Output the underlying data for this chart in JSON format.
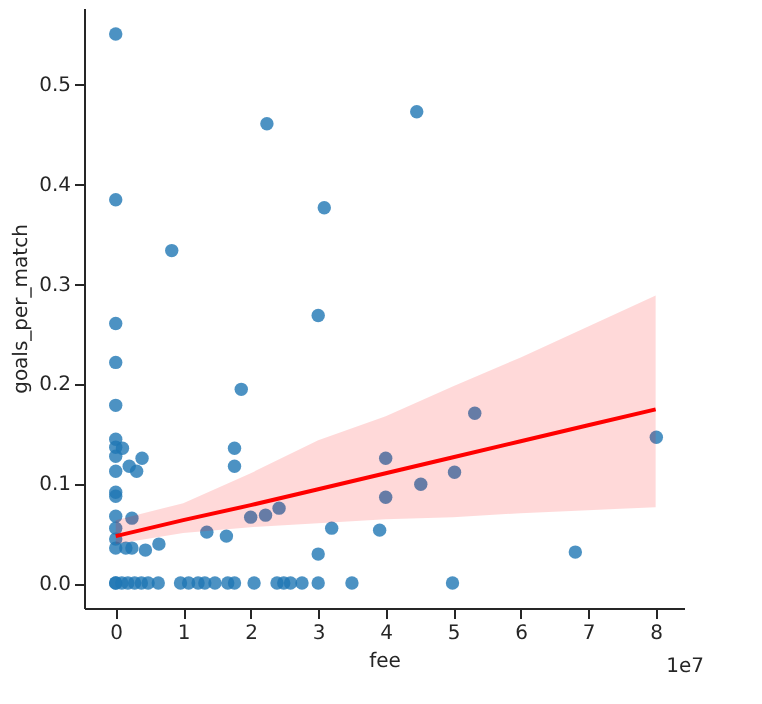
{
  "chart_data": {
    "type": "scatter",
    "xlabel": "fee",
    "ylabel": "goals_per_match",
    "xlim": [
      -0.47,
      8.42
    ],
    "ylim": [
      -0.025,
      0.576
    ],
    "xticks": [
      0,
      1,
      2,
      3,
      4,
      5,
      6,
      7,
      8
    ],
    "yticks": [
      {
        "value": 0,
        "label": "0.0"
      },
      0.1,
      0.2,
      0.3,
      0.4,
      0.5
    ],
    "annotations": [
      "1e7"
    ],
    "grid": false,
    "marker": "circle",
    "series": [
      {
        "color": "#1f77b4",
        "x": [
          0,
          2.24,
          4.46,
          0,
          3.09,
          0.83,
          0,
          3.0,
          0,
          0,
          0,
          1.86,
          0,
          0,
          0.1,
          0.39,
          0.2,
          0.31,
          0,
          0,
          1.76,
          1.76,
          0,
          0,
          0,
          0.24,
          2.42,
          2.0,
          2.22,
          0,
          3.2,
          1.35,
          1.64,
          3.91,
          0,
          0.64,
          0.44,
          0,
          0.15,
          0.24,
          3.0,
          4.0,
          4.0,
          4.52,
          5.02,
          5.32,
          8.01,
          6.81,
          0,
          0.09,
          0.18,
          0.28,
          0.38,
          0.48,
          0.63,
          0.96,
          1.08,
          1.22,
          1.32,
          1.47,
          1.66,
          1.76,
          2.05,
          2.39,
          2.49,
          2.59,
          2.76,
          3.0,
          3.5,
          4.99
        ],
        "values": [
          0.55,
          0.46,
          0.472,
          0.384,
          0.376,
          0.333,
          0.26,
          0.268,
          0.221,
          0.178,
          0.144,
          0.194,
          0.136,
          0.127,
          0.135,
          0.125,
          0.117,
          0.112,
          0.112,
          0.091,
          0.135,
          0.117,
          0.087,
          0.067,
          0.055,
          0.065,
          0.075,
          0.066,
          0.068,
          0.044,
          0.055,
          0.051,
          0.047,
          0.053,
          0.035,
          0.039,
          0.033,
          0.0,
          0.035,
          0.035,
          0.029,
          0.125,
          0.086,
          0.099,
          0.111,
          0.17,
          0.146,
          0.031,
          0.0,
          0.0,
          0.0,
          0.0,
          0.0,
          0.0,
          0.0,
          0.0,
          0.0,
          0.0,
          0.0,
          0.0,
          0.0,
          0.0,
          0.0,
          0.0,
          0.0,
          0.0,
          0.0,
          0.0,
          0.0,
          0.0
        ]
      },
      {
        "type": "line",
        "color": "#ff0000",
        "marker": "none",
        "line_style": "solid",
        "x": [
          0,
          1,
          2,
          3,
          4,
          5,
          6,
          7,
          8
        ],
        "values": [
          0.047,
          0.063,
          0.078,
          0.094,
          0.11,
          0.126,
          0.142,
          0.158,
          0.174
        ],
        "lower": [
          0.039,
          0.05,
          0.056,
          0.06,
          0.064,
          0.066,
          0.07,
          0.073,
          0.076
        ],
        "upper": [
          0.063,
          0.08,
          0.11,
          0.143,
          0.167,
          0.197,
          0.226,
          0.257,
          0.288
        ]
      }
    ]
  }
}
